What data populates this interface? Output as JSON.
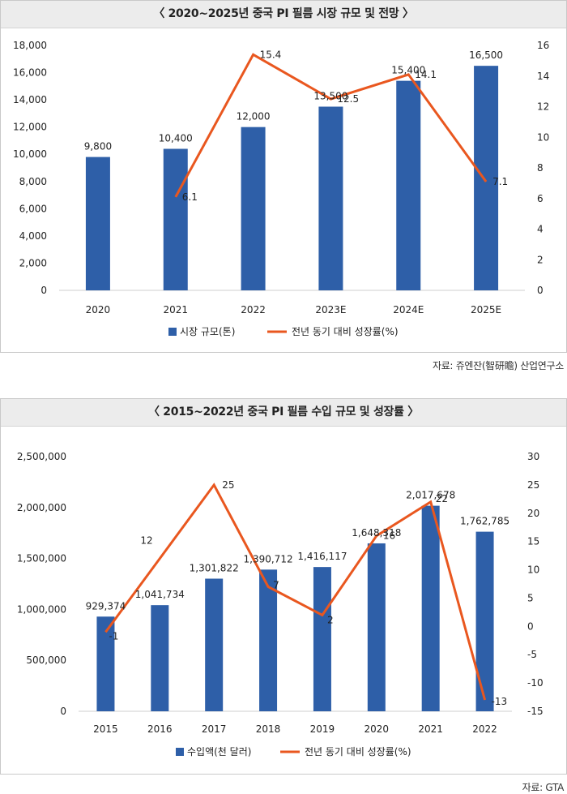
{
  "charts": [
    {
      "title": "〈 2020~2025년 중국 PI 필름 시장 규모 및 전망 〉",
      "source": "자료: 쥬엔잔(智研瞻) 산업연구소"
    },
    {
      "title": "〈 2015~2022년 중국 PI 필름 수입 규모 및 성장률 〉",
      "source": "자료: GTA"
    }
  ],
  "chart_data": [
    {
      "type": "bar",
      "categories": [
        "2020",
        "2021",
        "2022",
        "2023E",
        "2024E",
        "2025E"
      ],
      "series": [
        {
          "name": "시장 규모(톤)",
          "type": "bar",
          "axis": "left",
          "values": [
            9800,
            10400,
            12000,
            13500,
            15400,
            16500
          ],
          "labels": [
            "9,800",
            "10,400",
            "12,000",
            "13,500",
            "15,400",
            "16,500"
          ]
        },
        {
          "name": "전년 동기 대비 성장률(%)",
          "type": "line",
          "axis": "right",
          "values": [
            null,
            6.1,
            15.4,
            12.5,
            14.1,
            7.1
          ],
          "labels": [
            "",
            "6.1",
            "15.4",
            "12.5",
            "14.1",
            "7.1"
          ]
        }
      ],
      "y_left": {
        "min": 0,
        "max": 18000,
        "ticks": [
          "0",
          "2,000",
          "4,000",
          "6,000",
          "8,000",
          "10,000",
          "12,000",
          "14,000",
          "16,000",
          "18,000"
        ]
      },
      "y_right": {
        "min": 0,
        "max": 16,
        "ticks": [
          "0",
          "2",
          "4",
          "6",
          "8",
          "10",
          "12",
          "14",
          "16"
        ]
      },
      "grid": false,
      "legend_position": "bottom",
      "colors": {
        "bar": "#2e5fa8",
        "line": "#e9571f"
      }
    },
    {
      "type": "bar",
      "categories": [
        "2015",
        "2016",
        "2017",
        "2018",
        "2019",
        "2020",
        "2021",
        "2022"
      ],
      "series": [
        {
          "name": "수입액(천 달러)",
          "type": "bar",
          "axis": "left",
          "values": [
            929374,
            1041734,
            1301822,
            1390712,
            1416117,
            1648318,
            2017678,
            1762785
          ],
          "labels": [
            "929,374",
            "1,041,734",
            "1,301,822",
            "1,390,712",
            "1,416,117",
            "1,648,318",
            "2,017,678",
            "1,762,785"
          ]
        },
        {
          "name": "전년 동기 대비 성장률(%)",
          "type": "line",
          "axis": "right",
          "values": [
            -1,
            12,
            25,
            7,
            2,
            16,
            22,
            -13
          ],
          "labels": [
            "-1",
            "12",
            "25",
            "7",
            "2",
            "16",
            "22",
            "-13"
          ]
        }
      ],
      "y_left": {
        "min": 0,
        "max": 2500000,
        "ticks": [
          "0",
          "500,000",
          "1,000,000",
          "1,500,000",
          "2,000,000",
          "2,500,000"
        ]
      },
      "y_right": {
        "min": -15,
        "max": 30,
        "ticks": [
          "-15",
          "-10",
          "-5",
          "0",
          "5",
          "10",
          "15",
          "20",
          "25",
          "30"
        ]
      },
      "grid": false,
      "legend_position": "bottom",
      "colors": {
        "bar": "#2e5fa8",
        "line": "#e9571f"
      }
    }
  ]
}
